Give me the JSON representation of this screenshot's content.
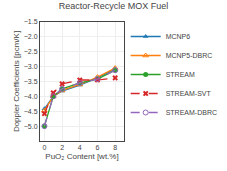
{
  "chart_data": {
    "type": "line",
    "title": "Reactor-Recycle MOX Fuel",
    "xlabel": "PuO₂ Content [wt.%]",
    "ylabel": "Doppler Coefficients [pcm/K]",
    "x": [
      0,
      1,
      2,
      4,
      6,
      8
    ],
    "xlim": [
      -0.5,
      9.0
    ],
    "xticks": [
      0,
      2,
      4,
      6,
      8
    ],
    "ylim": [
      -5.5,
      -1.5
    ],
    "yticks": [
      {
        "value": -5.0,
        "label": "−5.0"
      },
      {
        "value": -4.5,
        "label": "−4.5"
      },
      {
        "value": -4.0,
        "label": "−4.0"
      },
      {
        "value": -3.5,
        "label": "−3.5"
      },
      {
        "value": -3.0,
        "label": "−3.0"
      },
      {
        "value": -2.5,
        "label": "−2.5"
      },
      {
        "value": -2.0,
        "label": "−2.0"
      },
      {
        "value": -1.5,
        "label": "−1.5"
      }
    ],
    "grid": true,
    "legend": "right",
    "series": [
      {
        "name": "MCNP6",
        "values": [
          -4.42,
          -4.0,
          -3.82,
          -3.62,
          -3.38,
          -3.08
        ],
        "marker": "triangle-up",
        "line_style": "solid"
      },
      {
        "name": "MCNP5-DBRC",
        "values": [
          -4.48,
          -4.0,
          -3.8,
          -3.6,
          -3.35,
          -3.05
        ],
        "marker": "triangle-up-open",
        "line_style": "solid"
      },
      {
        "name": "STREAM",
        "values": [
          -5.0,
          -4.0,
          -3.75,
          -3.55,
          -3.42,
          -3.12
        ],
        "marker": "circle",
        "line_style": "solid"
      },
      {
        "name": "STREAM-SVT",
        "values": [
          -4.58,
          -3.88,
          -3.58,
          -3.45,
          -3.45,
          -3.38
        ],
        "marker": "x",
        "line_style": "dash"
      },
      {
        "name": "STREAM-DBRC",
        "values": [
          -5.0,
          -4.0,
          -3.75,
          -3.55,
          -3.42,
          -3.12
        ],
        "marker": "circle-open",
        "line_style": "dash"
      }
    ]
  }
}
